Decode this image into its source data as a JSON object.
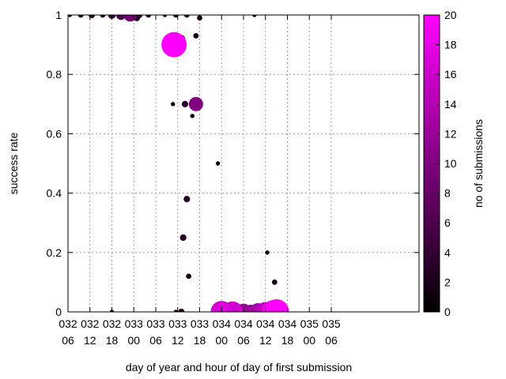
{
  "chart_data": {
    "type": "scatter",
    "title": "",
    "xlabel": "day of year and hour of day of first submission",
    "ylabel": "success rate",
    "colorbar_label": "no of submissions",
    "xlim": [
      30,
      126
    ],
    "ylim": [
      0,
      1
    ],
    "x_ticks": [
      {
        "value": 30,
        "line1": "032",
        "line2": "06"
      },
      {
        "value": 36,
        "line1": "032",
        "line2": "12"
      },
      {
        "value": 42,
        "line1": "032",
        "line2": "18"
      },
      {
        "value": 48,
        "line1": "033",
        "line2": "00"
      },
      {
        "value": 54,
        "line1": "033",
        "line2": "06"
      },
      {
        "value": 60,
        "line1": "033",
        "line2": "12"
      },
      {
        "value": 66,
        "line1": "033",
        "line2": "18"
      },
      {
        "value": 72,
        "line1": "034",
        "line2": "00"
      },
      {
        "value": 78,
        "line1": "034",
        "line2": "06"
      },
      {
        "value": 84,
        "line1": "034",
        "line2": "12"
      },
      {
        "value": 90,
        "line1": "034",
        "line2": "18"
      },
      {
        "value": 96,
        "line1": "035",
        "line2": "00"
      },
      {
        "value": 102,
        "line1": "035",
        "line2": "06"
      }
    ],
    "y_ticks": [
      "0",
      "0.2",
      "0.4",
      "0.6",
      "0.8",
      "1"
    ],
    "colorbar": {
      "min": 0,
      "max": 20,
      "ticks": [
        "0",
        "2",
        "4",
        "6",
        "8",
        "10",
        "12",
        "14",
        "16",
        "18",
        "20"
      ],
      "colors": [
        "#000000",
        "#ff00ff"
      ]
    },
    "grid": true,
    "points": [
      {
        "x": 30.5,
        "y": 1.0,
        "n": 1
      },
      {
        "x": 33.5,
        "y": 1.0,
        "n": 2
      },
      {
        "x": 36.5,
        "y": 1.0,
        "n": 3
      },
      {
        "x": 39.5,
        "y": 1.0,
        "n": 2
      },
      {
        "x": 42.0,
        "y": 1.0,
        "n": 4
      },
      {
        "x": 44.5,
        "y": 1.0,
        "n": 6
      },
      {
        "x": 47.0,
        "y": 1.0,
        "n": 9
      },
      {
        "x": 49.5,
        "y": 1.0,
        "n": 3
      },
      {
        "x": 52.0,
        "y": 1.0,
        "n": 2
      },
      {
        "x": 56.5,
        "y": 1.0,
        "n": 1
      },
      {
        "x": 59.5,
        "y": 1.0,
        "n": 2
      },
      {
        "x": 62.5,
        "y": 1.0,
        "n": 2
      },
      {
        "x": 66.0,
        "y": 0.99,
        "n": 2
      },
      {
        "x": 81.0,
        "y": 1.0,
        "n": 1
      },
      {
        "x": 48.8,
        "y": 0.99,
        "n": 3
      },
      {
        "x": 59.0,
        "y": 0.9,
        "n": 20
      },
      {
        "x": 61.0,
        "y": 0.92,
        "n": 4
      },
      {
        "x": 65.0,
        "y": 0.93,
        "n": 2
      },
      {
        "x": 58.7,
        "y": 0.7,
        "n": 1
      },
      {
        "x": 62.0,
        "y": 0.7,
        "n": 3
      },
      {
        "x": 65.0,
        "y": 0.7,
        "n": 10
      },
      {
        "x": 64.0,
        "y": 0.66,
        "n": 1
      },
      {
        "x": 71.0,
        "y": 0.5,
        "n": 1
      },
      {
        "x": 62.5,
        "y": 0.38,
        "n": 3
      },
      {
        "x": 61.5,
        "y": 0.25,
        "n": 3
      },
      {
        "x": 63.0,
        "y": 0.12,
        "n": 2
      },
      {
        "x": 84.5,
        "y": 0.2,
        "n": 1
      },
      {
        "x": 86.5,
        "y": 0.1,
        "n": 2
      },
      {
        "x": 42.0,
        "y": 0.0,
        "n": 1
      },
      {
        "x": 59.5,
        "y": 0.0,
        "n": 1
      },
      {
        "x": 61.0,
        "y": 0.0,
        "n": 3
      },
      {
        "x": 72.0,
        "y": 0.0,
        "n": 17
      },
      {
        "x": 75.0,
        "y": 0.0,
        "n": 16
      },
      {
        "x": 78.0,
        "y": 0.0,
        "n": 12
      },
      {
        "x": 80.0,
        "y": 0.0,
        "n": 10
      },
      {
        "x": 82.0,
        "y": 0.0,
        "n": 13
      },
      {
        "x": 84.0,
        "y": 0.0,
        "n": 15
      },
      {
        "x": 86.0,
        "y": 0.0,
        "n": 18
      },
      {
        "x": 87.0,
        "y": 0.0,
        "n": 20
      }
    ]
  }
}
